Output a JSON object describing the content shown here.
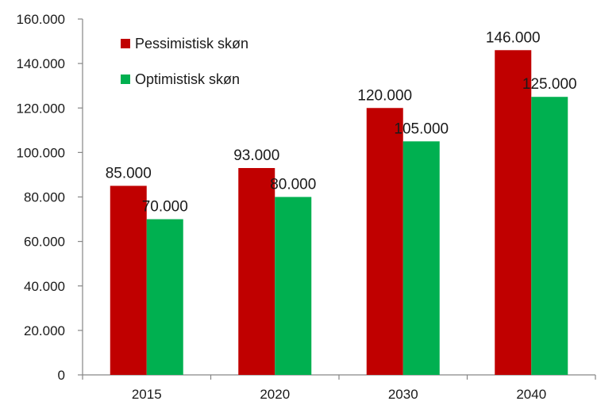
{
  "chart_data": {
    "type": "bar",
    "categories": [
      "2015",
      "2020",
      "2030",
      "2040"
    ],
    "series": [
      {
        "name": "Pessimistisk skøn",
        "color": "#c00000",
        "values": [
          85000,
          93000,
          120000,
          146000
        ]
      },
      {
        "name": "Optimistisk skøn",
        "color": "#00b050",
        "values": [
          70000,
          80000,
          105000,
          125000
        ]
      }
    ],
    "data_labels": [
      [
        "85.000",
        "93.000",
        "120.000",
        "146.000"
      ],
      [
        "70.000",
        "80.000",
        "105.000",
        "125.000"
      ]
    ],
    "y_ticks": [
      "0",
      "20.000",
      "40.000",
      "60.000",
      "80.000",
      "100.000",
      "120.000",
      "140.000",
      "160.000"
    ],
    "ylim": [
      0,
      160000
    ],
    "ytick_step": 20000,
    "title": "",
    "xlabel": "",
    "ylabel": "",
    "grid": false,
    "legend_position": "top-left"
  }
}
